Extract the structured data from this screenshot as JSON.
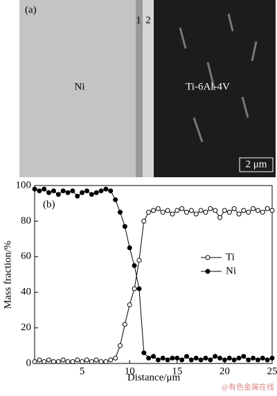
{
  "image": {
    "panel_label": "(a)",
    "layer_labels": [
      "1",
      "2"
    ],
    "left_label": "Ni",
    "right_label": "Ti-6Al-4V",
    "scale_bar": "2 μm"
  },
  "chart_data": {
    "type": "line",
    "panel_label": "(b)",
    "x_label": "Distance/μm",
    "y_label": "Mass fraction/%",
    "x": [
      0,
      0.5,
      1,
      1.5,
      2,
      2.5,
      3,
      3.5,
      4,
      4.5,
      5,
      5.5,
      6,
      6.5,
      7,
      7.5,
      8,
      8.5,
      9,
      9.5,
      10,
      10.5,
      11,
      11.5,
      12,
      12.5,
      13,
      13.5,
      14,
      14.5,
      15,
      15.5,
      16,
      16.5,
      17,
      17.5,
      18,
      18.5,
      19,
      19.5,
      20,
      20.5,
      21,
      21.5,
      22,
      22.5,
      23,
      23.5,
      24,
      24.5,
      25
    ],
    "series": [
      {
        "name": "Ti",
        "marker": "open",
        "color": "#000000",
        "values": [
          1,
          2,
          1,
          2,
          1,
          1,
          2,
          1,
          1,
          2,
          1,
          2,
          1,
          2,
          1,
          1,
          2,
          3,
          10,
          22,
          33,
          42,
          58,
          80,
          85,
          86,
          87,
          85,
          86,
          84,
          86,
          87,
          85,
          86,
          84,
          86,
          85,
          87,
          86,
          82,
          86,
          85,
          87,
          84,
          86,
          85,
          87,
          86,
          85,
          87,
          86
        ]
      },
      {
        "name": "Ni",
        "marker": "filled",
        "color": "#000000",
        "values": [
          98,
          97,
          98,
          96,
          97,
          95,
          97,
          96,
          97,
          94,
          96,
          97,
          95,
          96,
          97,
          98,
          97,
          92,
          85,
          77,
          65,
          55,
          42,
          6,
          3,
          4,
          2,
          3,
          2,
          3,
          3,
          2,
          4,
          2,
          3,
          2,
          3,
          2,
          4,
          3,
          2,
          3,
          2,
          3,
          4,
          2,
          3,
          2,
          3,
          2,
          3
        ]
      }
    ],
    "xlim": [
      0,
      25
    ],
    "xticks": [
      5,
      10,
      15,
      20,
      25
    ],
    "ylim": [
      0,
      100
    ],
    "yticks": [
      0,
      20,
      40,
      60,
      80,
      100
    ]
  },
  "watermark": "@有色金属在线"
}
